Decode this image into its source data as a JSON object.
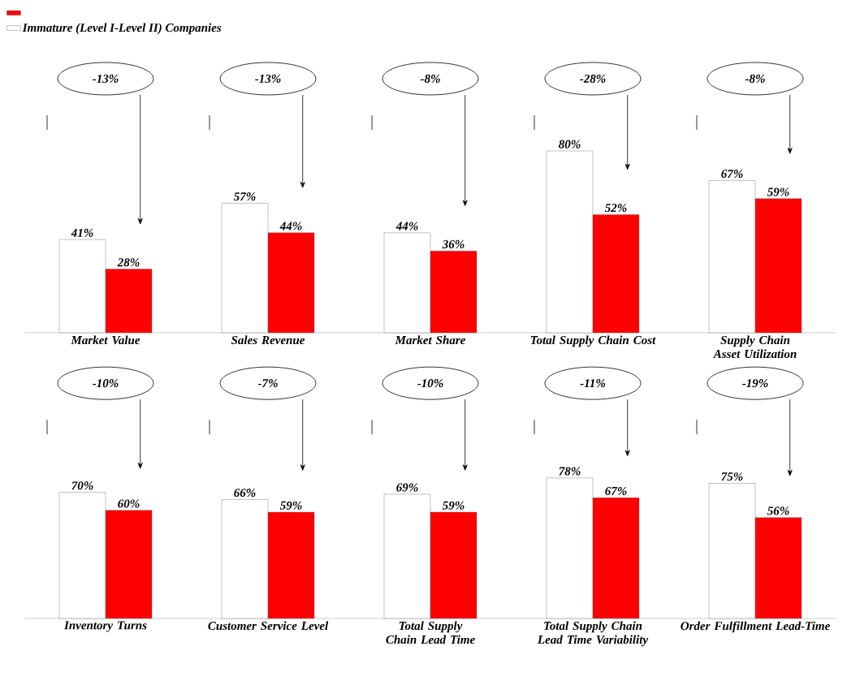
{
  "chart_data": [
    {
      "type": "bar",
      "categories": [
        "Market Value"
      ],
      "legend": "top",
      "annotations": [
        "-13%"
      ],
      "series": [
        {
          "name": "Immature (Level I-Level II) Companies",
          "color": "#ffffff",
          "values": [
            41
          ],
          "value_labels": [
            "41%"
          ]
        },
        {
          "color": "#ff0000",
          "values": [
            28
          ],
          "value_labels": [
            "28%"
          ]
        }
      ]
    },
    {
      "type": "bar",
      "categories": [
        "Sales Revenue"
      ],
      "annotations": [
        "-13%"
      ],
      "series": [
        {
          "color": "#ffffff",
          "values": [
            57
          ],
          "value_labels": [
            "57%"
          ]
        },
        {
          "color": "#ff0000",
          "values": [
            44
          ],
          "value_labels": [
            "44%"
          ]
        }
      ]
    },
    {
      "type": "bar",
      "categories": [
        "Market Share"
      ],
      "annotations": [
        "-8%"
      ],
      "series": [
        {
          "color": "#ffffff",
          "values": [
            44
          ],
          "value_labels": [
            "44%"
          ]
        },
        {
          "color": "#ff0000",
          "values": [
            36
          ],
          "value_labels": [
            "36%"
          ]
        }
      ]
    },
    {
      "type": "bar",
      "categories": [
        "Total Supply Chain Cost"
      ],
      "annotations": [
        "-28%"
      ],
      "series": [
        {
          "color": "#ffffff",
          "values": [
            80
          ],
          "value_labels": [
            "80%"
          ]
        },
        {
          "color": "#ff0000",
          "values": [
            52
          ],
          "value_labels": [
            "52%"
          ]
        }
      ]
    },
    {
      "type": "bar",
      "categories": [
        "Supply Chain Asset Utilization"
      ],
      "annotations": [
        "-8%"
      ],
      "series": [
        {
          "color": "#ffffff",
          "values": [
            67
          ],
          "value_labels": [
            "67%"
          ]
        },
        {
          "color": "#ff0000",
          "values": [
            59
          ],
          "value_labels": [
            "59%"
          ]
        }
      ]
    },
    {
      "type": "bar",
      "categories": [
        "Inventory Turns"
      ],
      "annotations": [
        "-10%"
      ],
      "series": [
        {
          "color": "#ffffff",
          "values": [
            70
          ],
          "value_labels": [
            "70%"
          ]
        },
        {
          "color": "#ff0000",
          "values": [
            60
          ],
          "value_labels": [
            "60%"
          ]
        }
      ]
    },
    {
      "type": "bar",
      "categories": [
        "Customer Service Level"
      ],
      "annotations": [
        "-7%"
      ],
      "series": [
        {
          "color": "#ffffff",
          "values": [
            66
          ],
          "value_labels": [
            "66%"
          ]
        },
        {
          "color": "#ff0000",
          "values": [
            59
          ],
          "value_labels": [
            "59%"
          ]
        }
      ]
    },
    {
      "type": "bar",
      "categories": [
        "Total Supply Chain Lead Time"
      ],
      "annotations": [
        "-10%"
      ],
      "series": [
        {
          "color": "#ffffff",
          "values": [
            69
          ],
          "value_labels": [
            "69%"
          ]
        },
        {
          "color": "#ff0000",
          "values": [
            59
          ],
          "value_labels": [
            "59%"
          ]
        }
      ]
    },
    {
      "type": "bar",
      "categories": [
        "Total Supply Chain Lead Time Variability"
      ],
      "annotations": [
        "-11%"
      ],
      "series": [
        {
          "color": "#ffffff",
          "values": [
            78
          ],
          "value_labels": [
            "78%"
          ]
        },
        {
          "color": "#ff0000",
          "values": [
            67
          ],
          "value_labels": [
            "67%"
          ]
        }
      ]
    },
    {
      "type": "bar",
      "categories": [
        "Order Fulfillment Lead-Time"
      ],
      "annotations": [
        "-19%"
      ],
      "series": [
        {
          "color": "#ffffff",
          "values": [
            75
          ],
          "value_labels": [
            "75%"
          ]
        },
        {
          "color": "#ff0000",
          "values": [
            56
          ],
          "value_labels": [
            "56%"
          ]
        }
      ]
    }
  ]
}
